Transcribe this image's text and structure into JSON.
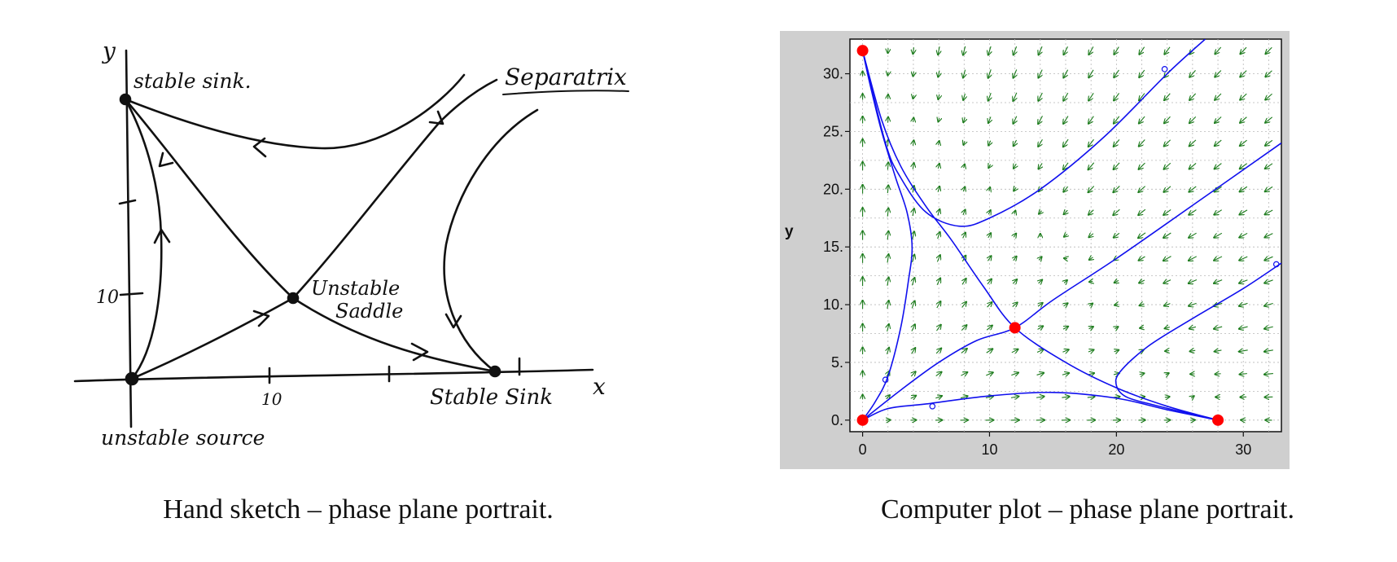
{
  "figure": {
    "sketch": {
      "caption": "Hand sketch – phase plane portrait.",
      "axis_x": "x",
      "axis_y": "y",
      "tick_x": "10",
      "tick_y": "10",
      "label_stable_sink_top": "stable sink.",
      "label_separatrix": "Separatrix",
      "label_saddle_line1": "Unstable",
      "label_saddle_line2": "Saddle",
      "label_stable_sink_right": "Stable Sink",
      "label_unstable_source": "unstable source"
    },
    "plot": {
      "caption": "Computer plot – phase plane portrait.",
      "ylabel": "y",
      "xlabel": "",
      "accent_curve": "#1010ee",
      "accent_point": "#ff0000",
      "accent_field": "#1a7a1a",
      "panel_bg": "#cfcfcf"
    }
  },
  "chart_data": {
    "type": "scatter",
    "title": "",
    "xlabel": "",
    "ylabel": "y",
    "xlim": [
      -1,
      33
    ],
    "ylim": [
      -1,
      33
    ],
    "grid": true,
    "x_ticks": [
      "0",
      "10",
      "20",
      "30"
    ],
    "y_ticks": [
      "0.",
      "5.",
      "10.",
      "15.",
      "20.",
      "25.",
      "30."
    ],
    "x_tick_values": [
      0,
      10,
      20,
      30
    ],
    "y_tick_values": [
      0,
      5,
      10,
      15,
      20,
      25,
      30
    ],
    "equilibria": [
      {
        "x": 0,
        "y": 0
      },
      {
        "x": 0,
        "y": 32
      },
      {
        "x": 12,
        "y": 8
      },
      {
        "x": 28,
        "y": 0
      }
    ],
    "series": [
      {
        "values": [
          [
            0,
            0
          ],
          [
            3,
            2.6
          ],
          [
            6,
            5
          ],
          [
            9,
            6.9
          ],
          [
            12,
            8
          ],
          [
            15,
            10.4
          ],
          [
            20,
            14
          ],
          [
            26,
            18.6
          ],
          [
            33,
            24
          ]
        ]
      },
      {
        "values": [
          [
            0,
            32
          ],
          [
            1.5,
            26
          ],
          [
            3,
            22
          ],
          [
            5,
            18.5
          ],
          [
            7,
            15.6
          ],
          [
            9.5,
            11.6
          ],
          [
            12,
            8
          ],
          [
            16,
            5
          ],
          [
            20,
            2.8
          ],
          [
            24,
            1.2
          ],
          [
            28,
            0
          ]
        ]
      },
      {
        "values": [
          [
            0,
            0
          ],
          [
            2,
            1
          ],
          [
            5,
            1.4
          ],
          [
            10,
            2.1
          ],
          [
            15,
            2.4
          ],
          [
            20,
            1.9
          ],
          [
            24,
            0.9
          ],
          [
            28,
            0
          ]
        ]
      },
      {
        "values": [
          [
            0,
            0
          ],
          [
            1,
            1.6
          ],
          [
            2,
            3.8
          ],
          [
            3,
            8
          ],
          [
            3.6,
            12
          ],
          [
            3.9,
            15
          ],
          [
            3.5,
            18
          ],
          [
            2.6,
            21
          ],
          [
            1.5,
            25
          ],
          [
            0.6,
            29
          ],
          [
            0,
            32
          ]
        ]
      },
      {
        "values": [
          [
            0,
            32
          ],
          [
            1.8,
            24
          ],
          [
            3,
            21
          ],
          [
            5,
            18
          ],
          [
            7.6,
            16.8
          ],
          [
            10,
            17.5
          ],
          [
            14,
            20
          ],
          [
            19,
            24.5
          ],
          [
            24,
            30
          ],
          [
            27,
            33
          ]
        ]
      },
      {
        "values": [
          [
            33,
            13.6
          ],
          [
            30,
            11.4
          ],
          [
            26,
            8.8
          ],
          [
            22.5,
            6.4
          ],
          [
            20.3,
            4.2
          ],
          [
            20,
            3
          ],
          [
            20.8,
            2
          ],
          [
            23,
            1.3
          ],
          [
            26,
            0.5
          ],
          [
            28,
            0
          ]
        ]
      }
    ],
    "markers": [
      {
        "x": 1.8,
        "y": 3.5
      },
      {
        "x": 5.5,
        "y": 1.2
      },
      {
        "x": 23.8,
        "y": 30.4
      },
      {
        "x": 32.6,
        "y": 13.5
      }
    ]
  }
}
